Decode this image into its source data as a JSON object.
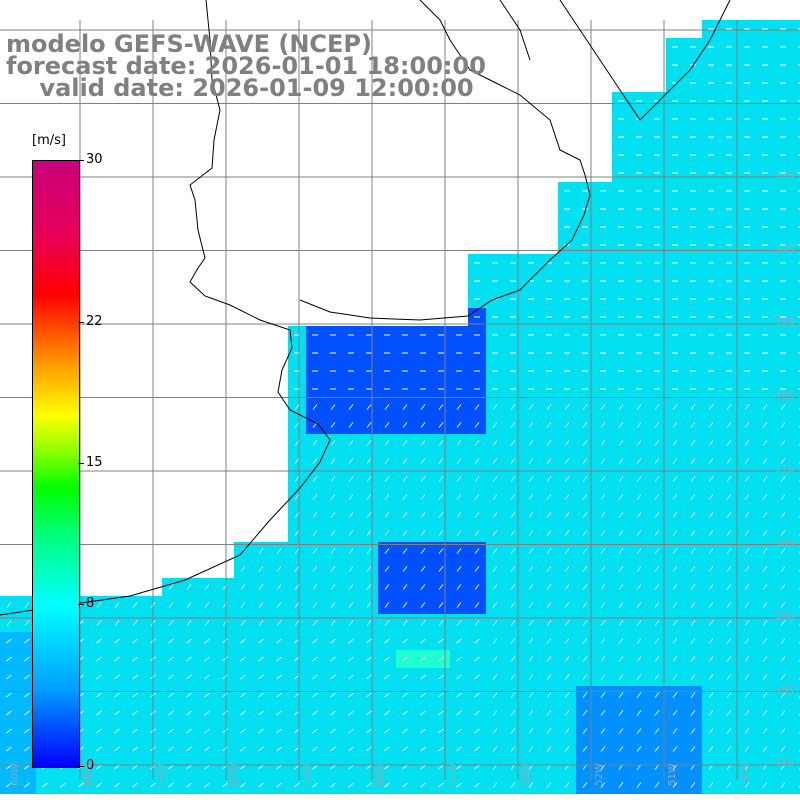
{
  "title": {
    "line1": "modelo GEFS-WAVE (NCEP)",
    "line2": "forecast date: 2026-01-01 18:00:00",
    "line3": "    valid date: 2026-01-09 12:00:00"
  },
  "colorbar": {
    "unit": "[m/s]",
    "ticks": [
      "30",
      "22",
      "15",
      "8",
      "0"
    ],
    "tick_values": [
      30,
      22,
      15,
      8,
      0
    ],
    "min": 0,
    "max": 30
  },
  "lat_labels": [
    "33S",
    "34S",
    "35S",
    "36S",
    "37S",
    "38S",
    "39S",
    "40S",
    "41S"
  ],
  "lon_labels": [
    "60W",
    "59W",
    "58W",
    "57W",
    "56W",
    "55W",
    "54W",
    "53W",
    "52W",
    "51W",
    "50W"
  ],
  "colors": {
    "land": "#ffffff",
    "coast": "#000000",
    "grid": "#808080",
    "title": "#808080",
    "arrow": "#ffffff"
  }
}
